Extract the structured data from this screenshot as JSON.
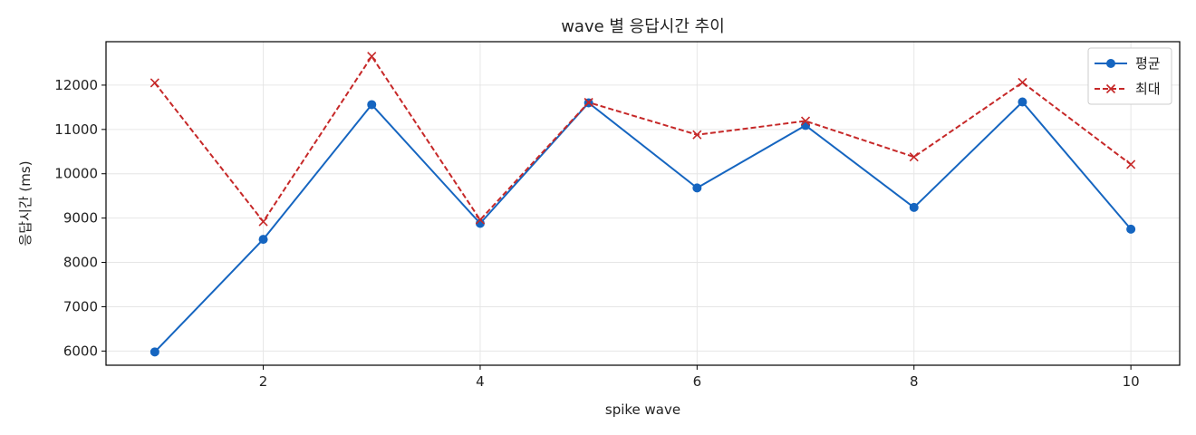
{
  "chart_data": {
    "type": "line",
    "title": "wave 별 응답시간 추이",
    "xlabel": "spike wave",
    "ylabel": "응답시간 (ms)",
    "x": [
      1,
      2,
      3,
      4,
      5,
      6,
      7,
      8,
      9,
      10
    ],
    "xticks": [
      2,
      4,
      6,
      8,
      10
    ],
    "yticks": [
      6000,
      7000,
      8000,
      9000,
      10000,
      11000,
      12000
    ],
    "xlim": [
      0.55,
      10.45
    ],
    "ylim": [
      5680,
      12980
    ],
    "grid": true,
    "legend_position": "top-right",
    "series": [
      {
        "name": "평균",
        "color": "#1565c0",
        "line_style": "solid",
        "marker": "circle",
        "values": [
          5980,
          8520,
          11560,
          8880,
          11600,
          9680,
          11090,
          9240,
          11620,
          8750
        ]
      },
      {
        "name": "최대",
        "color": "#c62828",
        "line_style": "dashed",
        "marker": "x",
        "values": [
          12050,
          8920,
          12650,
          8960,
          11610,
          10880,
          11190,
          10380,
          12060,
          10210
        ]
      }
    ]
  }
}
